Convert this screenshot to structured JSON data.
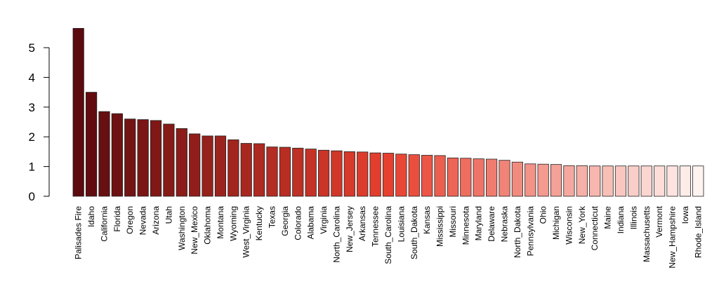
{
  "chart_data": {
    "type": "bar",
    "title": "",
    "xlabel": "",
    "ylabel": "",
    "ylim": [
      0,
      5.7
    ],
    "y_ticks": [
      "0",
      "1",
      "2",
      "3",
      "4",
      "5"
    ],
    "grid": false,
    "color_scale": {
      "high": "#5c0a0e",
      "mid": "#e8402e",
      "low": "#fff3f0"
    },
    "categories": [
      "Palisades Fire",
      "Idaho",
      "California",
      "Florida",
      "Oregon",
      "Nevada",
      "Arizona",
      "Utah",
      "Washington",
      "New_Mexico",
      "Oklahoma",
      "Montana",
      "Wyoming",
      "West_Virginia",
      "Kentucky",
      "Texas",
      "Georgia",
      "Colorado",
      "Alabama",
      "Virginia",
      "North_Carolina",
      "New_Jersey",
      "Arkansas",
      "Tennessee",
      "South_Carolina",
      "Louisiana",
      "South_Dakota",
      "Kansas",
      "Mississippi",
      "Missouri",
      "Minnesota",
      "Maryland",
      "Delaware",
      "Nebraska",
      "North_Dakota",
      "Pennsylvania",
      "Ohio",
      "Michigan",
      "Wisconsin",
      "New_York",
      "Connecticut",
      "Maine",
      "Indiana",
      "Illinois",
      "Massachusetts",
      "Vermont",
      "New_Hampshire",
      "Iowa",
      "Rhode_Island"
    ],
    "values": [
      5.65,
      3.5,
      2.85,
      2.78,
      2.6,
      2.58,
      2.55,
      2.43,
      2.28,
      2.1,
      2.03,
      2.03,
      1.9,
      1.78,
      1.77,
      1.66,
      1.65,
      1.62,
      1.59,
      1.55,
      1.53,
      1.5,
      1.49,
      1.46,
      1.45,
      1.42,
      1.4,
      1.38,
      1.37,
      1.29,
      1.28,
      1.26,
      1.25,
      1.21,
      1.15,
      1.09,
      1.08,
      1.07,
      1.03,
      1.03,
      1.02,
      1.02,
      1.02,
      1.02,
      1.02,
      1.02,
      1.02,
      1.02,
      1.02
    ]
  }
}
